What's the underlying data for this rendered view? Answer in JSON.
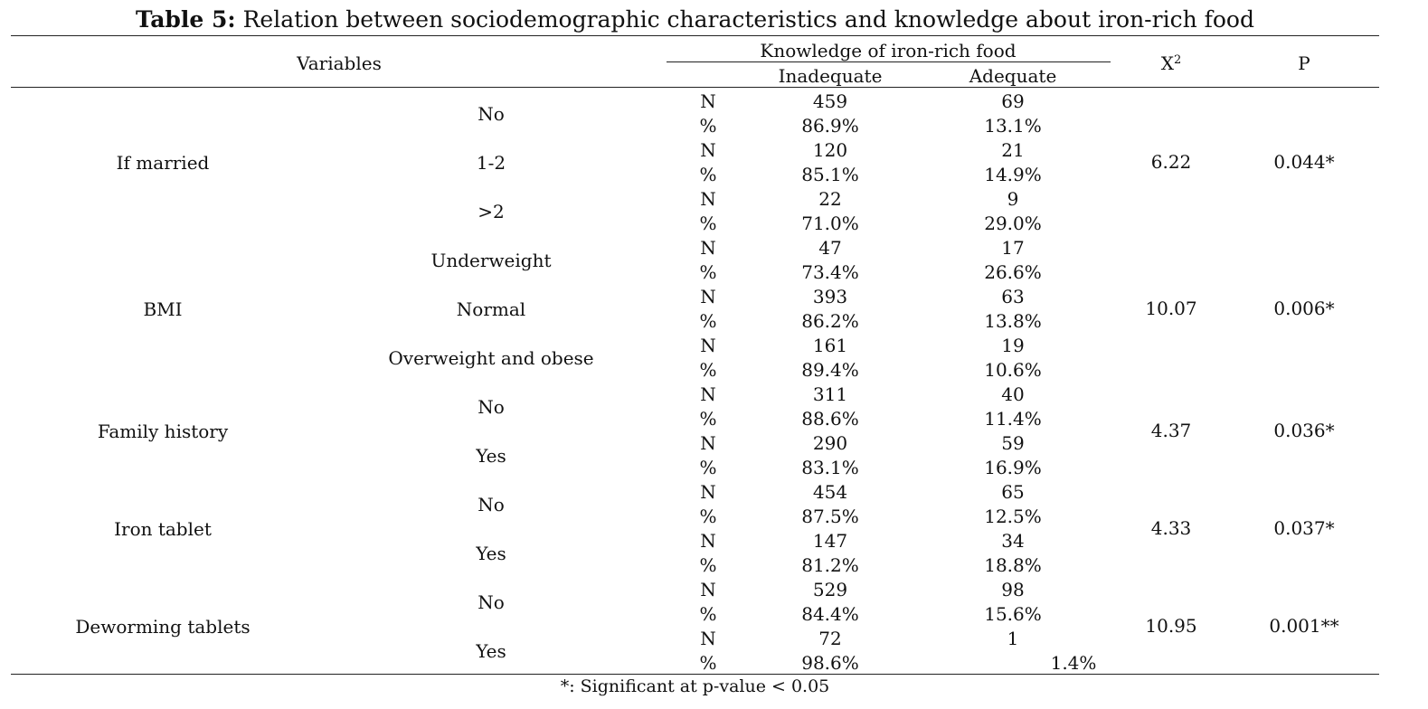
{
  "caption": {
    "label": "Table 5:",
    "text": " Relation between sociodemographic characteristics and knowledge about iron-rich food"
  },
  "header": {
    "variables": "Variables",
    "knowledge": "Knowledge of iron-rich food",
    "inadequate": "Inadequate",
    "adequate": "Adequate",
    "chi_base": "X",
    "chi_sup": "2",
    "p": "P"
  },
  "groups": [
    {
      "name": "If married",
      "chi": "6.22",
      "p": "0.044*",
      "levels": [
        {
          "label": "No",
          "n_inadequate": "459",
          "n_adequate": "69",
          "pct_inadequate": "86.9%",
          "pct_adequate": "13.1%"
        },
        {
          "label": "1-2",
          "n_inadequate": "120",
          "n_adequate": "21",
          "pct_inadequate": "85.1%",
          "pct_adequate": "14.9%"
        },
        {
          "label": ">2",
          "n_inadequate": "22",
          "n_adequate": "9",
          "pct_inadequate": "71.0%",
          "pct_adequate": "29.0%"
        }
      ]
    },
    {
      "name": "BMI",
      "chi": "10.07",
      "p": "0.006*",
      "levels": [
        {
          "label": "Underweight",
          "n_inadequate": "47",
          "n_adequate": "17",
          "pct_inadequate": "73.4%",
          "pct_adequate": "26.6%"
        },
        {
          "label": "Normal",
          "n_inadequate": "393",
          "n_adequate": "63",
          "pct_inadequate": "86.2%",
          "pct_adequate": "13.8%"
        },
        {
          "label": "Overweight and obese",
          "n_inadequate": "161",
          "n_adequate": "19",
          "pct_inadequate": "89.4%",
          "pct_adequate": "10.6%"
        }
      ]
    },
    {
      "name": "Family history",
      "chi": "4.37",
      "p": "0.036*",
      "levels": [
        {
          "label": "No",
          "n_inadequate": "311",
          "n_adequate": "40",
          "pct_inadequate": "88.6%",
          "pct_adequate": "11.4%"
        },
        {
          "label": "Yes",
          "n_inadequate": "290",
          "n_adequate": "59",
          "pct_inadequate": "83.1%",
          "pct_adequate": "16.9%"
        }
      ]
    },
    {
      "name": "Iron tablet",
      "chi": "4.33",
      "p": "0.037*",
      "levels": [
        {
          "label": "No",
          "n_inadequate": "454",
          "n_adequate": "65",
          "pct_inadequate": "87.5%",
          "pct_adequate": "12.5%"
        },
        {
          "label": "Yes",
          "n_inadequate": "147",
          "n_adequate": "34",
          "pct_inadequate": "81.2%",
          "pct_adequate": "18.8%"
        }
      ]
    },
    {
      "name": "Deworming tablets",
      "chi": "10.95",
      "p": "0.001**",
      "levels": [
        {
          "label": "No",
          "n_inadequate": "529",
          "n_adequate": "98",
          "pct_inadequate": "84.4%",
          "pct_adequate": "15.6%"
        },
        {
          "label": "Yes",
          "n_inadequate": "72",
          "n_adequate": "1",
          "pct_inadequate": "98.6%",
          "pct_adequate": "1.4%"
        }
      ]
    }
  ],
  "footnote": "*: Significant at p-value < 0.05"
}
